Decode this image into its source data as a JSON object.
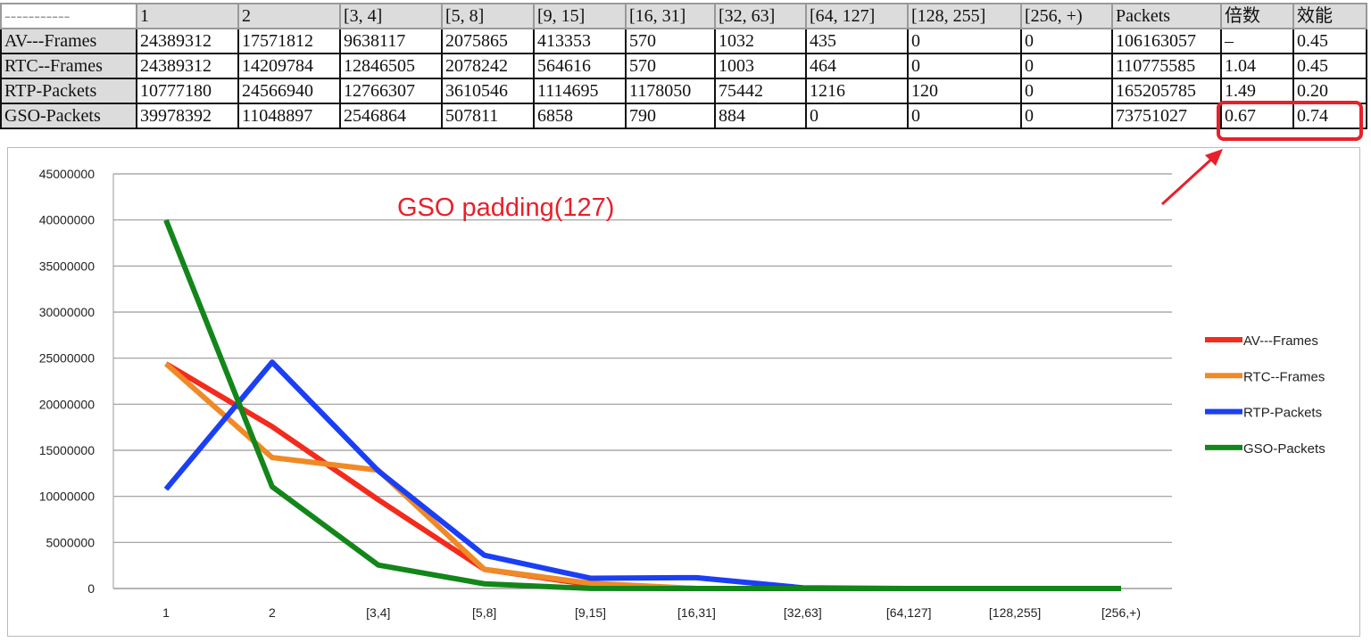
{
  "table": {
    "corner": "-----------",
    "headers": [
      "1",
      "2",
      "[3, 4]",
      "[5, 8]",
      "[9, 15]",
      "[16, 31]",
      "[32, 63]",
      "[64, 127]",
      "[128, 255]",
      "[256, +)",
      "Packets",
      "倍数",
      "效能"
    ],
    "rows": [
      {
        "label": "AV---Frames",
        "cells": [
          "24389312",
          "17571812",
          "9638117",
          "2075865",
          "413353",
          "570",
          "1032",
          "435",
          "0",
          "0",
          "106163057",
          "–",
          "0.45"
        ]
      },
      {
        "label": "RTC--Frames",
        "cells": [
          "24389312",
          "14209784",
          "12846505",
          "2078242",
          "564616",
          "570",
          "1003",
          "464",
          "0",
          "0",
          "110775585",
          "1.04",
          "0.45"
        ]
      },
      {
        "label": "RTP-Packets",
        "cells": [
          "10777180",
          "24566940",
          "12766307",
          "3610546",
          "1114695",
          "1178050",
          "75442",
          "1216",
          "120",
          "0",
          "165205785",
          "1.49",
          "0.20"
        ]
      },
      {
        "label": "GSO-Packets",
        "cells": [
          "39978392",
          "11048897",
          "2546864",
          "507811",
          "6858",
          "790",
          "884",
          "0",
          "0",
          "0",
          "73751027",
          "0.67",
          "0.74"
        ]
      }
    ]
  },
  "annotation": {
    "text": "GSO padding(127)",
    "color": "#e8202a"
  },
  "chart_data": {
    "type": "line",
    "title": "",
    "xlabel": "",
    "ylabel": "",
    "categories": [
      "1",
      "2",
      "[3,4]",
      "[5,8]",
      "[9,15]",
      "[16,31]",
      "[32,63]",
      "[64,127]",
      "[128,255]",
      "[256,+)"
    ],
    "ylim": [
      0,
      45000000
    ],
    "yticks": [
      "0",
      "5000000",
      "10000000",
      "15000000",
      "20000000",
      "25000000",
      "30000000",
      "35000000",
      "40000000",
      "45000000"
    ],
    "grid": true,
    "legend": "right",
    "series": [
      {
        "name": "AV---Frames",
        "color": "#f22b1c",
        "values": [
          24389312,
          17571812,
          9638117,
          2075865,
          413353,
          570,
          1032,
          435,
          0,
          0
        ]
      },
      {
        "name": "RTC--Frames",
        "color": "#ef8a26",
        "values": [
          24389312,
          14209784,
          12846505,
          2078242,
          564616,
          570,
          1003,
          464,
          0,
          0
        ]
      },
      {
        "name": "RTP-Packets",
        "color": "#1b3ff5",
        "values": [
          10777180,
          24566940,
          12766307,
          3610546,
          1114695,
          1178050,
          75442,
          1216,
          120,
          0
        ]
      },
      {
        "name": "GSO-Packets",
        "color": "#13861a",
        "values": [
          39978392,
          11048897,
          2546864,
          507811,
          6858,
          790,
          884,
          0,
          0,
          0
        ]
      }
    ]
  }
}
